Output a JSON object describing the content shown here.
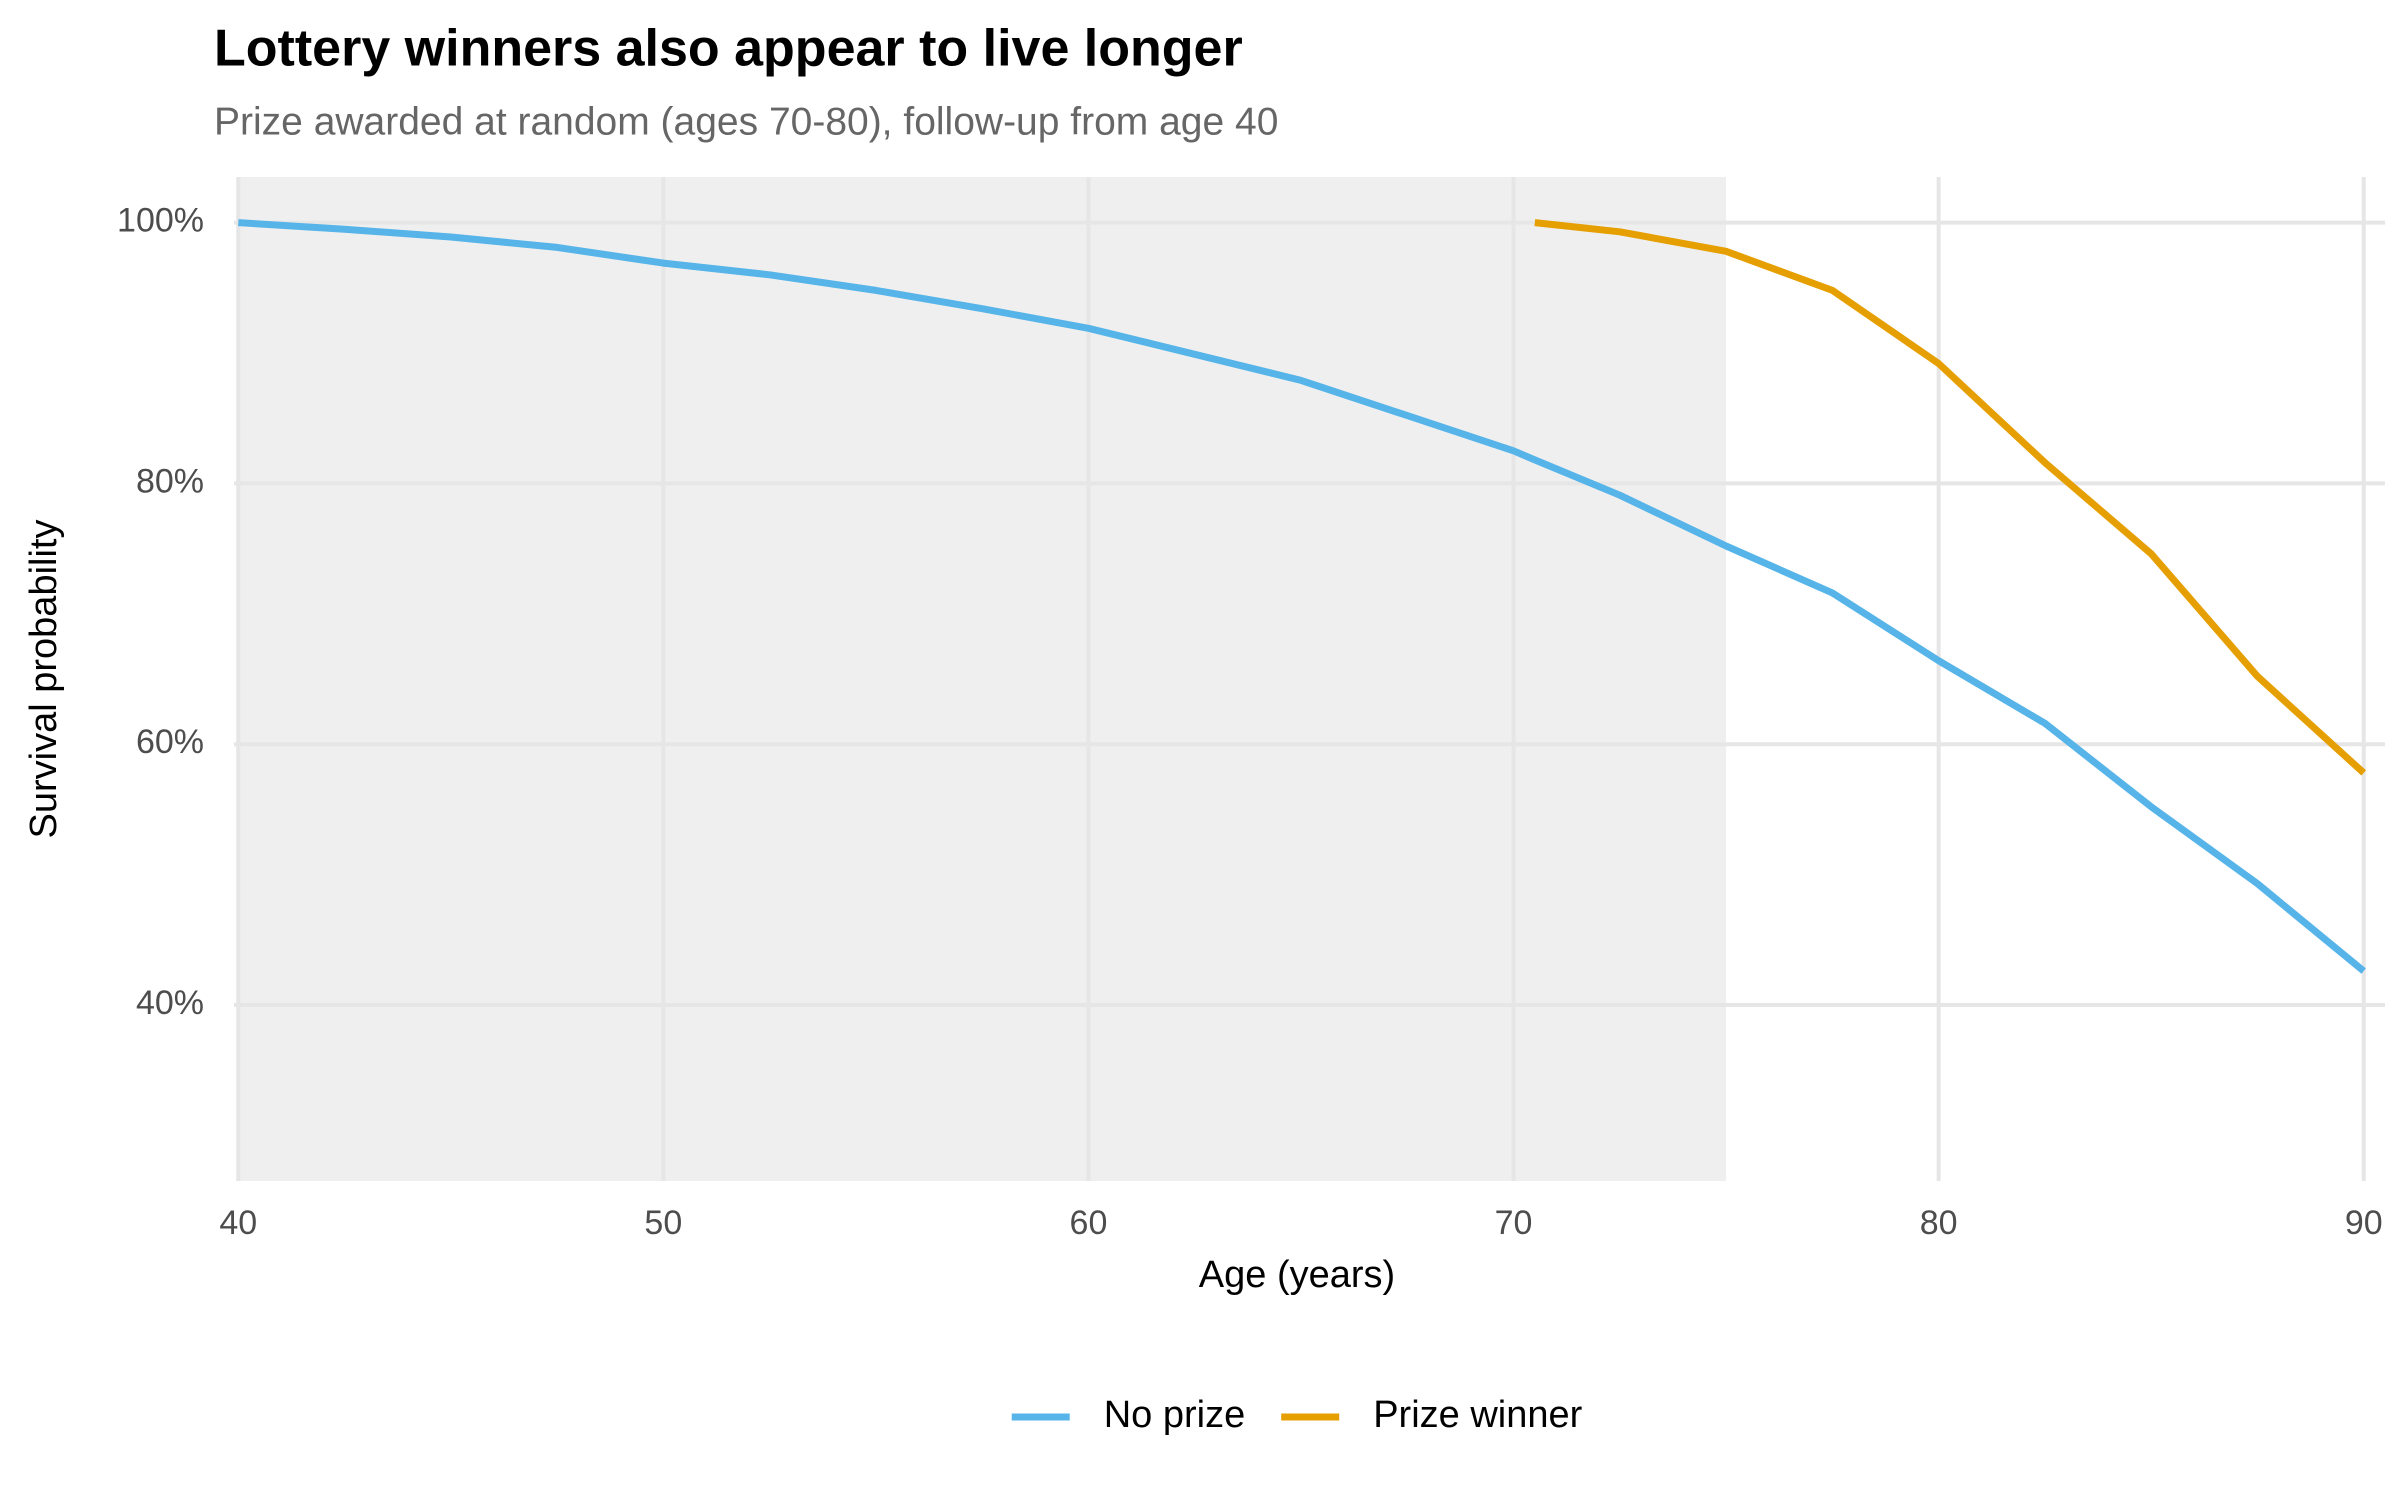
{
  "chart_data": {
    "type": "line",
    "title": "Lottery winners also appear to live longer",
    "subtitle": "Prize awarded at random (ages 70-80), follow-up from age 40",
    "x_label": "Age (years)",
    "y_label": "Survival probability",
    "x": [
      40,
      42.5,
      45,
      47.5,
      50,
      52.5,
      55,
      57.5,
      60,
      62.5,
      65,
      67.5,
      70,
      70.5,
      72.5,
      75,
      77.5,
      80,
      82.5,
      85,
      87.5,
      90
    ],
    "series": [
      {
        "name": "No prize",
        "color": "#56b4e9",
        "values": [
          100,
          99.5,
          98.9,
          98.1,
          96.9,
          96.0,
          94.8,
          93.4,
          91.9,
          89.9,
          87.9,
          85.2,
          82.5,
          81.8,
          79.1,
          75.2,
          71.6,
          66.4,
          61.6,
          55.2,
          49.3,
          42.6
        ]
      },
      {
        "name": "Prize winner",
        "color": "#e69f00",
        "values": [
          null,
          null,
          null,
          null,
          null,
          null,
          null,
          null,
          null,
          null,
          null,
          null,
          null,
          100,
          99.3,
          97.8,
          94.8,
          89.2,
          81.6,
          74.6,
          65.2,
          57.8
        ]
      }
    ],
    "shaded_region": {
      "xmin": 40,
      "xmax": 75,
      "color": "#efefef"
    },
    "xlim": [
      39.9,
      90.5
    ],
    "ylim": [
      26.5,
      103.5
    ],
    "xticks": [
      40,
      50,
      60,
      70,
      80,
      90
    ],
    "yticks": [
      {
        "value": 40,
        "label": "40%"
      },
      {
        "value": 60,
        "label": "60%"
      },
      {
        "value": 80,
        "label": "80%"
      },
      {
        "value": 100,
        "label": "100%"
      }
    ],
    "grid": true,
    "legend_position": "bottom"
  }
}
